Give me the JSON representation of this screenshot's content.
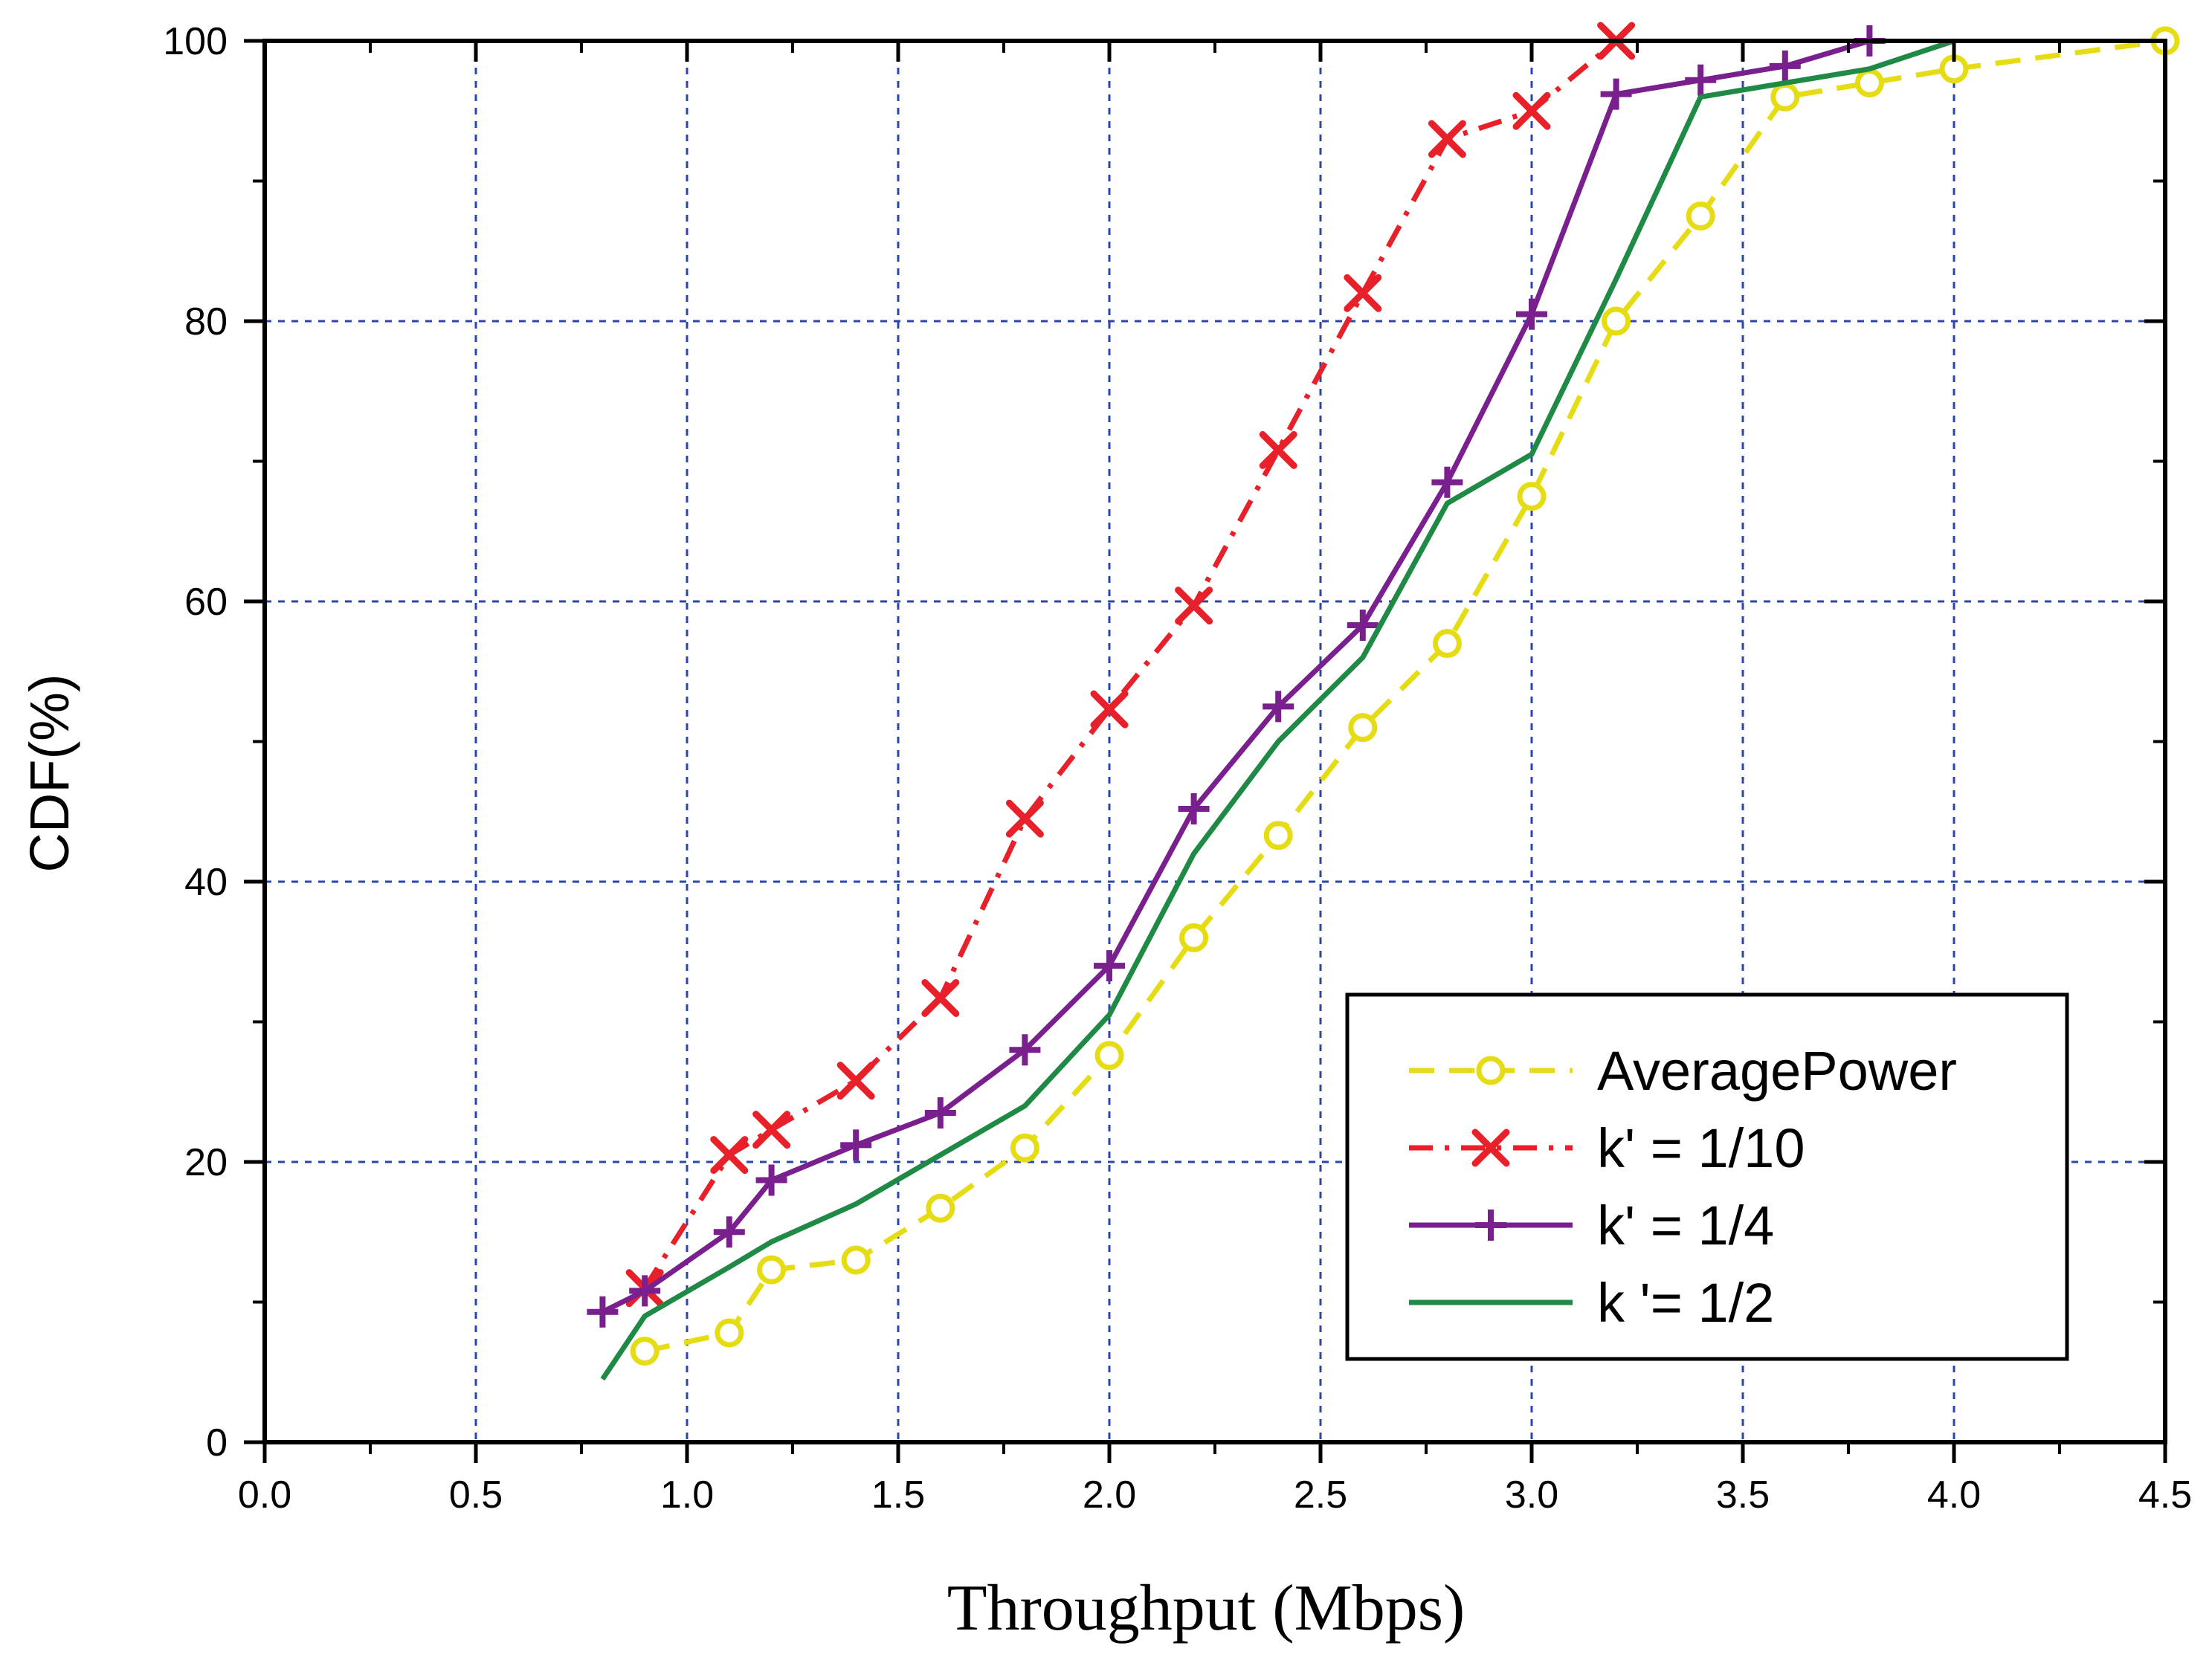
{
  "chart_data": {
    "type": "line",
    "title": "",
    "xlabel": "Throughput (Mbps)",
    "ylabel": "CDF(%)",
    "xlim": [
      0,
      4.5
    ],
    "ylim": [
      0,
      100
    ],
    "x_ticks": [
      0.0,
      0.5,
      1.0,
      1.5,
      2.0,
      2.5,
      3.0,
      3.5,
      4.0,
      4.5
    ],
    "x_tick_labels": [
      "0.0",
      "0.5",
      "1.0",
      "1.5",
      "2.0",
      "2.5",
      "3.0",
      "3.5",
      "4.0",
      "4.5"
    ],
    "y_ticks": [
      0,
      20,
      40,
      60,
      80,
      100
    ],
    "y_tick_labels": [
      "0",
      "20",
      "40",
      "60",
      "80",
      "100"
    ],
    "grid": true,
    "legend_position": "bottom-right",
    "series": [
      {
        "name": "AveragePower",
        "color": "#e6dc14",
        "line_style": "dashed",
        "marker": "circle",
        "x": [
          0.9,
          1.1,
          1.2,
          1.4,
          1.6,
          1.8,
          2.0,
          2.2,
          2.4,
          2.6,
          2.8,
          3.0,
          3.2,
          3.4,
          3.6,
          3.8,
          4.0,
          4.5
        ],
        "y": [
          6.5,
          7.8,
          12.3,
          13.0,
          16.7,
          21.0,
          27.6,
          36.0,
          43.3,
          51.0,
          57.0,
          67.5,
          80.0,
          87.5,
          96.0,
          97.0,
          98.0,
          100.0
        ]
      },
      {
        "name": "k' = 1/10",
        "color": "#e8202a",
        "line_style": "dash-dot",
        "marker": "x",
        "x": [
          0.9,
          1.1,
          1.2,
          1.4,
          1.6,
          1.8,
          2.0,
          2.2,
          2.4,
          2.6,
          2.8,
          3.0,
          3.2
        ],
        "y": [
          11.0,
          20.5,
          22.3,
          25.8,
          31.7,
          44.5,
          52.3,
          59.7,
          70.8,
          82.0,
          93.0,
          95.0,
          100.0
        ]
      },
      {
        "name": "k' = 1/4",
        "color": "#7a1f8e",
        "line_style": "solid",
        "marker": "plus",
        "x": [
          0.8,
          0.9,
          1.1,
          1.2,
          1.4,
          1.6,
          1.8,
          2.0,
          2.2,
          2.4,
          2.6,
          2.8,
          3.0,
          3.2,
          3.4,
          3.6,
          3.8
        ],
        "y": [
          9.3,
          10.8,
          15.0,
          18.7,
          21.2,
          23.5,
          28.0,
          34.0,
          45.2,
          52.5,
          58.3,
          68.5,
          80.5,
          96.2,
          97.2,
          98.2,
          100.0
        ]
      },
      {
        "name": "k '= 1/2",
        "color": "#1f8a46",
        "line_style": "solid",
        "marker": "none",
        "x": [
          0.8,
          0.9,
          1.1,
          1.2,
          1.4,
          1.6,
          1.8,
          2.0,
          2.2,
          2.4,
          2.6,
          2.8,
          3.0,
          3.2,
          3.4,
          3.6,
          3.8,
          4.0
        ],
        "y": [
          4.5,
          9.0,
          12.5,
          14.3,
          17.0,
          20.5,
          24.0,
          30.5,
          42.0,
          50.0,
          56.0,
          67.0,
          70.5,
          83.0,
          96.0,
          97.0,
          98.0,
          100.0
        ]
      }
    ]
  }
}
